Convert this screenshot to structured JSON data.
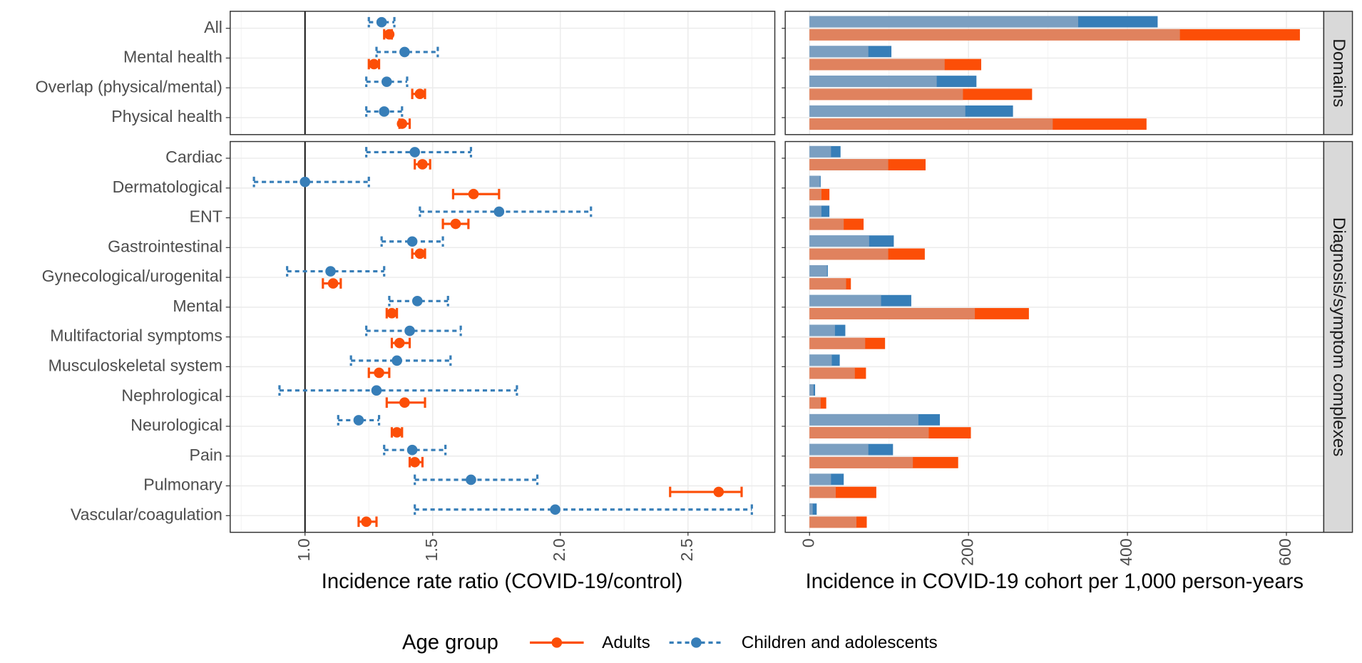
{
  "chart_data": {
    "type": "forest",
    "xlabel": "Incidence rate ratio (COVID-19/control)",
    "xlim": [
      0.707,
      2.84
    ],
    "xticks": [
      {
        "value": 1.0,
        "label": "1.0"
      },
      {
        "value": 1.5,
        "label": "1.5"
      },
      {
        "value": 2.0,
        "label": "2.0"
      },
      {
        "value": 2.5,
        "label": "2.5"
      }
    ],
    "reference_line": 1,
    "bar_xlabel": "Incidence in COVID-19 cohort per 1,000 person-years",
    "bar_xlim": [
      -30.6,
      647
    ],
    "bar_xticks": [
      0,
      200,
      400,
      600
    ],
    "grid": true,
    "legend_title": "Age group",
    "legend_position": "bottom",
    "facets": [
      {
        "strip": "Domains",
        "categories": [
          "All",
          "Mental health",
          "Overlap (physical/mental)",
          "Physical health"
        ]
      },
      {
        "strip": "Diagnosis/symptom complexes",
        "categories": [
          "Cardiac",
          "Dermatological",
          "ENT",
          "Gastrointestinal",
          "Gynecological/urogenital",
          "Mental",
          "Multifactorial symptoms",
          "Musculoskeletal system",
          "Nephrological",
          "Neurological",
          "Pain",
          "Pulmonary",
          "Vascular/coagulation"
        ]
      }
    ],
    "series": [
      {
        "name": "Adults",
        "color": "#fc4e07",
        "bar_color": "#e0825e",
        "dashed": false,
        "estimate": [
          [
            1.33,
            1.27,
            1.45,
            1.38
          ],
          [
            1.46,
            1.66,
            1.59,
            1.45,
            1.11,
            1.34,
            1.37,
            1.29,
            1.39,
            1.36,
            1.43,
            2.62,
            1.24
          ]
        ],
        "lower": [
          [
            1.31,
            1.25,
            1.42,
            1.37
          ],
          [
            1.43,
            1.58,
            1.54,
            1.42,
            1.07,
            1.32,
            1.34,
            1.25,
            1.32,
            1.34,
            1.41,
            2.43,
            1.21
          ]
        ],
        "upper": [
          [
            1.34,
            1.29,
            1.47,
            1.41
          ],
          [
            1.49,
            1.76,
            1.64,
            1.47,
            1.14,
            1.36,
            1.41,
            1.33,
            1.47,
            1.38,
            1.46,
            2.71,
            1.28
          ]
        ],
        "incidence": [
          [
            617,
            216,
            280,
            424
          ],
          [
            146,
            25,
            68,
            145,
            52,
            276,
            95,
            71,
            21,
            203,
            187,
            84,
            72
          ]
        ],
        "incidence_light": [
          [
            466,
            170,
            193,
            306
          ],
          [
            99,
            15,
            43,
            99,
            46,
            208,
            70,
            57,
            14,
            150,
            130,
            33,
            59
          ]
        ]
      },
      {
        "name": "Children and adolescents",
        "color": "#377eb8",
        "bar_color": "#7b9fc1",
        "dashed": true,
        "estimate": [
          [
            1.3,
            1.39,
            1.32,
            1.31
          ],
          [
            1.43,
            1.0,
            1.76,
            1.42,
            1.1,
            1.44,
            1.41,
            1.36,
            1.28,
            1.21,
            1.42,
            1.65,
            1.98
          ]
        ],
        "lower": [
          [
            1.25,
            1.28,
            1.24,
            1.24
          ],
          [
            1.24,
            0.8,
            1.45,
            1.3,
            0.93,
            1.33,
            1.24,
            1.18,
            0.9,
            1.13,
            1.31,
            1.43,
            1.43
          ]
        ],
        "upper": [
          [
            1.35,
            1.52,
            1.4,
            1.38
          ],
          [
            1.65,
            1.25,
            2.12,
            1.54,
            1.31,
            1.56,
            1.61,
            1.57,
            1.83,
            1.29,
            1.55,
            1.91,
            2.75
          ]
        ],
        "incidence": [
          [
            438,
            103,
            210,
            256
          ],
          [
            39,
            14,
            25,
            106,
            23,
            128,
            45,
            38,
            7,
            164,
            105,
            43,
            9
          ]
        ],
        "incidence_light": [
          [
            338,
            74,
            160,
            196
          ],
          [
            27,
            13,
            15,
            75,
            22,
            90,
            32,
            28,
            5,
            137,
            74,
            27,
            4
          ]
        ]
      }
    ]
  }
}
